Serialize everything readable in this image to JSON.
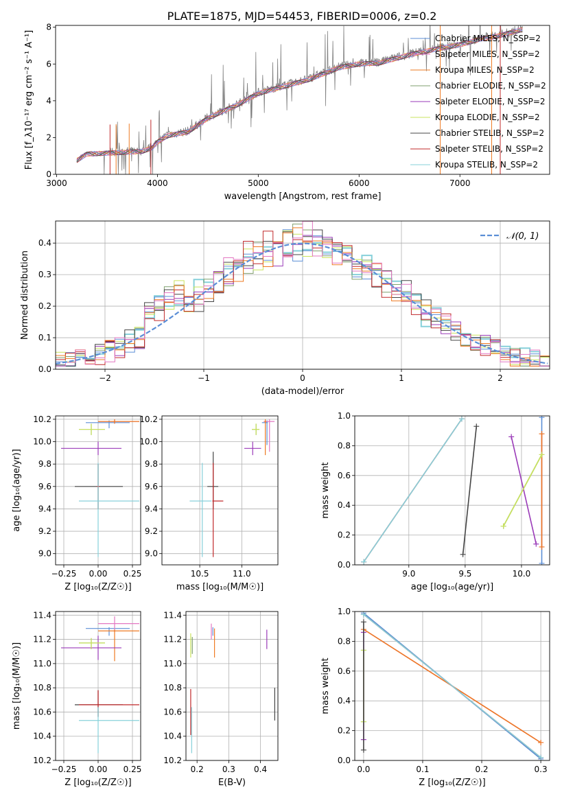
{
  "figure": {
    "title": "PLATE=1875, MJD=54453, FIBERID=0006, z=0.2"
  },
  "colors": {
    "Chabrier MILES": "#5b8ed6",
    "Salpeter MILES": "#e377c2",
    "Kroupa MILES": "#ee7a22",
    "Chabrier ELODIE": "#7f9f6e",
    "Salpeter ELODIE": "#9a3ab8",
    "Kroupa ELODIE": "#c9e35c",
    "Chabrier STELIB": "#444444",
    "Salpeter STELIB": "#c0282a",
    "Kroupa STELIB": "#86d0da",
    "data": "#808080",
    "normal_curve": "#5b8ed6"
  },
  "chart_data": [
    {
      "type": "line",
      "id": "spectrum",
      "xlabel": "wavelength [Angstrom, rest frame]",
      "ylabel": "Flux [f_λ10⁻¹⁷ erg cm⁻² s⁻¹ A⁻¹]",
      "xlim": [
        2990,
        7890
      ],
      "ylim": [
        0,
        8.1
      ],
      "xticks": [
        "3000",
        "4000",
        "5000",
        "6000",
        "7000"
      ],
      "xtick_values": [
        3000,
        4000,
        5000,
        6000,
        7000
      ],
      "yticks": [
        "0",
        "2",
        "4",
        "6",
        "8"
      ],
      "ytick_values": [
        0,
        2,
        4,
        6,
        8
      ],
      "continuum": {
        "x": [
          3200,
          3300,
          3500,
          3700,
          3850,
          3950,
          4000,
          4100,
          4300,
          4500,
          4800,
          5000,
          5200,
          5500,
          5800,
          6000,
          6200,
          6500,
          6800,
          7000,
          7200,
          7400,
          7600
        ],
        "y": [
          0.8,
          1.15,
          1.2,
          1.25,
          1.3,
          1.5,
          1.8,
          2.15,
          2.35,
          3.1,
          3.85,
          4.45,
          4.75,
          5.2,
          5.85,
          6.05,
          6.1,
          6.55,
          6.9,
          7.1,
          7.4,
          7.6,
          7.9
        ]
      },
      "legend_entries": [
        "Chabrier MILES, N_SSP=2",
        "Salpeter MILES, N_SSP=2",
        "Kroupa MILES, N_SSP=2",
        "Chabrier ELODIE, N_SSP=2",
        "Salpeter ELODIE, N_SSP=2",
        "Kroupa ELODIE, N_SSP=2",
        "Chabrier STELIB, N_SSP=2",
        "Salpeter STELIB, N_SSP=2",
        "Kroupa STELIB, N_SSP=2"
      ],
      "legend_placement": "upper-right",
      "legend_series": [
        "Chabrier MILES",
        "Salpeter MILES",
        "Kroupa MILES",
        "Chabrier ELODIE",
        "Salpeter ELODIE",
        "Kroupa ELODIE",
        "Chabrier STELIB",
        "Salpeter STELIB",
        "Kroupa STELIB"
      ],
      "grid": false
    },
    {
      "type": "line",
      "id": "residuals",
      "xlabel": "(data-model)/error",
      "ylabel": "Normed distribution",
      "xlim": [
        -2.5,
        2.5
      ],
      "ylim": [
        0,
        0.47
      ],
      "xticks": [
        "−2",
        "−1",
        "0",
        "1",
        "2"
      ],
      "xtick_values": [
        -2,
        -1,
        0,
        1,
        2
      ],
      "yticks": [
        "0.0",
        "0.1",
        "0.2",
        "0.3",
        "0.4"
      ],
      "ytick_values": [
        0,
        0.1,
        0.2,
        0.3,
        0.4
      ],
      "legend_entries": [
        "𝒩(0, 1)"
      ],
      "legend_placement": "upper-right",
      "grid": true,
      "bin_width": 0.1
    },
    {
      "type": "scatter",
      "id": "age_vs_Z",
      "xlabel": "Z [log₁₀(Z/Z☉)]",
      "ylabel": "age  [log₁₀(age/yr)]",
      "xlim": [
        -0.31,
        0.31
      ],
      "ylim": [
        8.9,
        10.23
      ],
      "xticks": [
        "−0.25",
        "0.00",
        "0.25"
      ],
      "xtick_values": [
        -0.25,
        0,
        0.25
      ],
      "yticks": [
        "9.0",
        "9.2",
        "9.4",
        "9.6",
        "9.8",
        "10.0",
        "10.2"
      ],
      "ytick_values": [
        9,
        9.2,
        9.4,
        9.6,
        9.8,
        10,
        10.2
      ],
      "grid": true,
      "points": [
        {
          "series": "Chabrier MILES",
          "x": 0.08,
          "y": 10.17,
          "xerr": [
            0.17,
            0.15
          ],
          "yerr": [
            0.05,
            0.02
          ]
        },
        {
          "series": "Salpeter MILES",
          "x": 0.12,
          "y": 10.18,
          "xerr": [
            0.12,
            0.18
          ],
          "yerr": [
            0.02,
            0.02
          ]
        },
        {
          "series": "Kroupa MILES",
          "x": 0.12,
          "y": 10.18,
          "xerr": [
            0.12,
            0.18
          ],
          "yerr": [
            0.02,
            0.02
          ]
        },
        {
          "series": "Chabrier ELODIE",
          "x": -0.05,
          "y": 10.11,
          "xerr": [
            0.09,
            0.1
          ],
          "yerr": [
            0.05,
            0.05
          ]
        },
        {
          "series": "Salpeter ELODIE",
          "x": 0.0,
          "y": 9.94,
          "xerr": [
            0.27,
            0.17
          ],
          "yerr": [
            0.06,
            0.06
          ]
        },
        {
          "series": "Kroupa ELODIE",
          "x": -0.05,
          "y": 10.11,
          "xerr": [
            0.09,
            0.1
          ],
          "yerr": [
            0.05,
            0.05
          ]
        },
        {
          "series": "Chabrier STELIB",
          "x": 0.0,
          "y": 9.6,
          "xerr": [
            0.17,
            0.18
          ],
          "yerr": [
            0.2,
            0.2
          ]
        },
        {
          "series": "Salpeter STELIB",
          "x": 0.0,
          "y": 9.6,
          "xerr": [
            0.01,
            0.01
          ],
          "yerr": [
            0.2,
            0.2
          ]
        },
        {
          "series": "Kroupa STELIB",
          "x": 0.0,
          "y": 9.47,
          "xerr": [
            0.14,
            0.3
          ],
          "yerr": [
            0.5,
            0.34
          ]
        }
      ]
    },
    {
      "type": "scatter",
      "id": "age_vs_mass",
      "xlabel": "mass [log₁₀(M/M☉)]",
      "ylabel": "",
      "xlim": [
        10.05,
        11.43
      ],
      "ylim": [
        8.9,
        10.23
      ],
      "xticks": [
        "10.5",
        "11.0"
      ],
      "xtick_values": [
        10.5,
        11
      ],
      "yticks": [
        "9.0",
        "9.2",
        "9.4",
        "9.6",
        "9.8",
        "10.0",
        "10.2"
      ],
      "ytick_values": [
        9,
        9.2,
        9.4,
        9.6,
        9.8,
        10,
        10.2
      ],
      "grid": true,
      "points": [
        {
          "series": "Chabrier MILES",
          "x": 11.3,
          "y": 10.17,
          "xerr": [
            0.06,
            0.01
          ],
          "yerr": [
            0.2,
            0.02
          ]
        },
        {
          "series": "Salpeter MILES",
          "x": 11.33,
          "y": 10.18,
          "xerr": [
            0.07,
            0.06
          ],
          "yerr": [
            0.27,
            0.02
          ]
        },
        {
          "series": "Kroupa MILES",
          "x": 11.28,
          "y": 10.18,
          "xerr": [
            0.01,
            0.01
          ],
          "yerr": [
            0.3,
            0.02
          ]
        },
        {
          "series": "Chabrier ELODIE",
          "x": 11.17,
          "y": 10.11,
          "xerr": [
            0.05,
            0.04
          ],
          "yerr": [
            0.05,
            0.05
          ]
        },
        {
          "series": "Salpeter ELODIE",
          "x": 11.13,
          "y": 9.94,
          "xerr": [
            0.1,
            0.1
          ],
          "yerr": [
            0.06,
            0.06
          ]
        },
        {
          "series": "Kroupa ELODIE",
          "x": 11.17,
          "y": 10.11,
          "xerr": [
            0.05,
            0.04
          ],
          "yerr": [
            0.05,
            0.05
          ]
        },
        {
          "series": "Chabrier STELIB",
          "x": 10.66,
          "y": 9.6,
          "xerr": [
            0.07,
            0.06
          ],
          "yerr": [
            0.2,
            0.31
          ]
        },
        {
          "series": "Salpeter STELIB",
          "x": 10.66,
          "y": 9.47,
          "xerr": [
            0.01,
            0.12
          ],
          "yerr": [
            0.5,
            0.34
          ]
        },
        {
          "series": "Kroupa STELIB",
          "x": 10.53,
          "y": 9.47,
          "xerr": [
            0.15,
            0.11
          ],
          "yerr": [
            0.5,
            0.34
          ]
        }
      ]
    },
    {
      "type": "line",
      "id": "massweight_vs_age",
      "xlabel": "age  [log₁₀(age/yr)]",
      "ylabel": "mass weight",
      "xlim": [
        8.52,
        10.25
      ],
      "ylim": [
        0,
        1
      ],
      "xticks": [
        "9.0",
        "9.5",
        "10.0"
      ],
      "xtick_values": [
        9,
        9.5,
        10
      ],
      "yticks": [
        "0.0",
        "0.2",
        "0.4",
        "0.6",
        "0.8",
        "1.0"
      ],
      "ytick_values": [
        0,
        0.2,
        0.4,
        0.6,
        0.8,
        1
      ],
      "grid": true,
      "series": [
        {
          "series": "Chabrier MILES",
          "x": [
            10.18,
            10.18
          ],
          "y": [
            0.01,
            0.99
          ]
        },
        {
          "series": "Salpeter MILES",
          "x": [
            10.18,
            10.18
          ],
          "y": [
            0.12,
            0.88
          ]
        },
        {
          "series": "Kroupa MILES",
          "x": [
            10.18,
            10.18
          ],
          "y": [
            0.12,
            0.88
          ]
        },
        {
          "series": "Chabrier ELODIE",
          "x": [
            9.84,
            10.18
          ],
          "y": [
            0.26,
            0.74
          ]
        },
        {
          "series": "Salpeter ELODIE",
          "x": [
            9.91,
            10.13
          ],
          "y": [
            0.86,
            0.14
          ]
        },
        {
          "series": "Kroupa ELODIE",
          "x": [
            9.84,
            10.18
          ],
          "y": [
            0.26,
            0.74
          ]
        },
        {
          "series": "Chabrier STELIB",
          "x": [
            9.48,
            9.6
          ],
          "y": [
            0.07,
            0.93
          ]
        },
        {
          "series": "Salpeter STELIB",
          "x": [
            8.6,
            9.47
          ],
          "y": [
            0.02,
            0.98
          ]
        },
        {
          "series": "Kroupa STELIB",
          "x": [
            8.6,
            9.47
          ],
          "y": [
            0.02,
            0.98
          ]
        }
      ]
    },
    {
      "type": "scatter",
      "id": "mass_vs_Z",
      "xlabel": "Z [log₁₀(Z/Z☉)]",
      "ylabel": "mass [log₁₀(M/M☉)]",
      "xlim": [
        -0.31,
        0.31
      ],
      "ylim": [
        10.2,
        11.43
      ],
      "xticks": [
        "−0.25",
        "0.00",
        "0.25"
      ],
      "xtick_values": [
        -0.25,
        0,
        0.25
      ],
      "yticks": [
        "10.2",
        "10.4",
        "10.6",
        "10.8",
        "11.0",
        "11.2",
        "11.4"
      ],
      "ytick_values": [
        10.2,
        10.4,
        10.6,
        10.8,
        11,
        11.2,
        11.4
      ],
      "grid": true,
      "points": [
        {
          "series": "Chabrier MILES",
          "x": 0.08,
          "y": 11.29,
          "xerr": [
            0.17,
            0.15
          ],
          "yerr": [
            0.06,
            0.01
          ]
        },
        {
          "series": "Salpeter MILES",
          "x": 0.12,
          "y": 11.33,
          "xerr": [
            0.12,
            0.18
          ],
          "yerr": [
            0.07,
            0.06
          ]
        },
        {
          "series": "Kroupa MILES",
          "x": 0.12,
          "y": 11.27,
          "xerr": [
            0.12,
            0.18
          ],
          "yerr": [
            0.25,
            0.01
          ]
        },
        {
          "series": "Chabrier ELODIE",
          "x": -0.05,
          "y": 11.17,
          "xerr": [
            0.09,
            0.1
          ],
          "yerr": [
            0.05,
            0.04
          ]
        },
        {
          "series": "Salpeter ELODIE",
          "x": 0.0,
          "y": 11.13,
          "xerr": [
            0.27,
            0.17
          ],
          "yerr": [
            0.1,
            0.1
          ]
        },
        {
          "series": "Kroupa ELODIE",
          "x": -0.05,
          "y": 11.17,
          "xerr": [
            0.09,
            0.1
          ],
          "yerr": [
            0.05,
            0.04
          ]
        },
        {
          "series": "Chabrier STELIB",
          "x": 0.0,
          "y": 10.66,
          "xerr": [
            0.17,
            0.18
          ],
          "yerr": [
            0.1,
            0.12
          ]
        },
        {
          "series": "Salpeter STELIB",
          "x": 0.0,
          "y": 10.66,
          "xerr": [
            0.14,
            0.3
          ],
          "yerr": [
            0.1,
            0.12
          ]
        },
        {
          "series": "Kroupa STELIB",
          "x": 0.0,
          "y": 10.53,
          "xerr": [
            0.14,
            0.3
          ],
          "yerr": [
            0.27,
            0.11
          ]
        }
      ]
    },
    {
      "type": "scatter",
      "id": "mass_vs_ebv",
      "xlabel": "E(B-V)",
      "ylabel": "",
      "xlim": [
        0.165,
        0.455
      ],
      "ylim": [
        10.2,
        11.43
      ],
      "xticks": [
        "0.2",
        "0.3",
        "0.4"
      ],
      "xtick_values": [
        0.2,
        0.3,
        0.4
      ],
      "yticks": [
        "10.2",
        "10.4",
        "10.6",
        "10.8",
        "11.0",
        "11.2",
        "11.4"
      ],
      "ytick_values": [
        10.2,
        10.4,
        10.6,
        10.8,
        11,
        11.2,
        11.4
      ],
      "grid": true,
      "points": [
        {
          "series": "Chabrier MILES",
          "x": 0.25,
          "y": 11.29,
          "xerr": [
            0,
            0
          ],
          "yerr": [
            0.06,
            0.01
          ]
        },
        {
          "series": "Salpeter MILES",
          "x": 0.245,
          "y": 11.27,
          "xerr": [
            0,
            0
          ],
          "yerr": [
            0.07,
            0.06
          ]
        },
        {
          "series": "Kroupa MILES",
          "x": 0.255,
          "y": 11.23,
          "xerr": [
            0,
            0
          ],
          "yerr": [
            0.18,
            0.06
          ]
        },
        {
          "series": "Chabrier ELODIE",
          "x": 0.185,
          "y": 11.18,
          "xerr": [
            0,
            0
          ],
          "yerr": [
            0.1,
            0.04
          ]
        },
        {
          "series": "Salpeter ELODIE",
          "x": 0.42,
          "y": 11.2,
          "xerr": [
            0,
            0
          ],
          "yerr": [
            0.08,
            0.08
          ]
        },
        {
          "series": "Kroupa ELODIE",
          "x": 0.18,
          "y": 11.15,
          "xerr": [
            0,
            0
          ],
          "yerr": [
            0.1,
            0.1
          ]
        },
        {
          "series": "Chabrier STELIB",
          "x": 0.445,
          "y": 10.66,
          "xerr": [
            0,
            0
          ],
          "yerr": [
            0.13,
            0.14
          ]
        },
        {
          "series": "Salpeter STELIB",
          "x": 0.18,
          "y": 10.66,
          "xerr": [
            0,
            0
          ],
          "yerr": [
            0.25,
            0.13
          ]
        },
        {
          "series": "Kroupa STELIB",
          "x": 0.183,
          "y": 10.53,
          "xerr": [
            0,
            0
          ],
          "yerr": [
            0.27,
            0.11
          ]
        }
      ]
    },
    {
      "type": "line",
      "id": "massweight_vs_Z",
      "xlabel": "Z [log₁₀(Z/Z☉)]",
      "ylabel": "mass weight",
      "xlim": [
        -0.015,
        0.315
      ],
      "ylim": [
        0,
        1
      ],
      "xticks": [
        "0.0",
        "0.1",
        "0.2",
        "0.3"
      ],
      "xtick_values": [
        0,
        0.1,
        0.2,
        0.3
      ],
      "yticks": [
        "0.0",
        "0.2",
        "0.4",
        "0.6",
        "0.8",
        "1.0"
      ],
      "ytick_values": [
        0,
        0.2,
        0.4,
        0.6,
        0.8,
        1
      ],
      "grid": true,
      "series": [
        {
          "series": "Chabrier MILES",
          "x": [
            0,
            0.3
          ],
          "y": [
            0.99,
            0.01
          ]
        },
        {
          "series": "Salpeter MILES",
          "x": [
            0,
            0.3
          ],
          "y": [
            0.88,
            0.12
          ]
        },
        {
          "series": "Kroupa MILES",
          "x": [
            0,
            0.3
          ],
          "y": [
            0.88,
            0.12
          ]
        },
        {
          "series": "Chabrier ELODIE",
          "x": [
            0,
            0
          ],
          "y": [
            0.26,
            0.74
          ]
        },
        {
          "series": "Salpeter ELODIE",
          "x": [
            0,
            0
          ],
          "y": [
            0.14,
            0.86
          ]
        },
        {
          "series": "Kroupa ELODIE",
          "x": [
            0,
            0
          ],
          "y": [
            0.26,
            0.74
          ]
        },
        {
          "series": "Chabrier STELIB",
          "x": [
            0,
            0
          ],
          "y": [
            0.07,
            0.93
          ]
        },
        {
          "series": "Salpeter STELIB",
          "x": [
            0,
            0.3
          ],
          "y": [
            0.98,
            0.02
          ]
        },
        {
          "series": "Kroupa STELIB",
          "x": [
            0,
            0.3
          ],
          "y": [
            0.98,
            0.02
          ]
        }
      ]
    }
  ]
}
